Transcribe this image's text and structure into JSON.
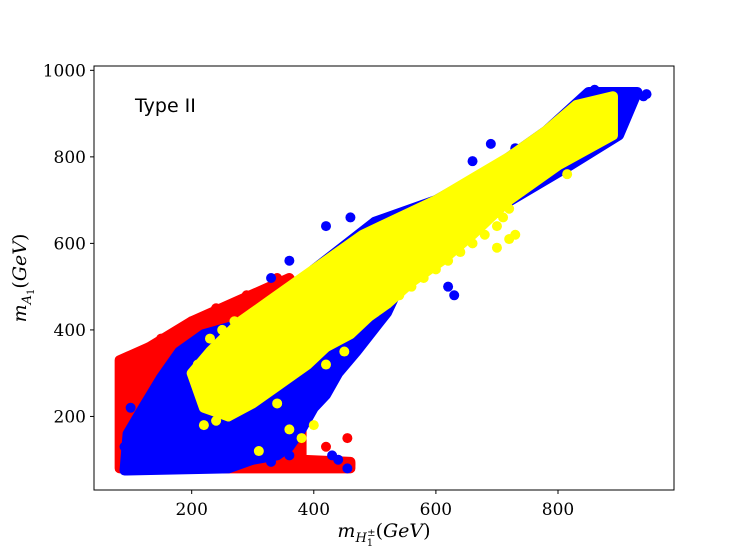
{
  "chart_data": {
    "type": "scatter",
    "annotation": "Type II",
    "xlabel": "m_{H_1^±}(GeV)",
    "ylabel": "m_{A_1}(GeV)",
    "xlim": [
      40,
      990
    ],
    "ylim": [
      30,
      1010
    ],
    "xticks": [
      200,
      400,
      600,
      800
    ],
    "yticks": [
      200,
      400,
      600,
      800,
      1000
    ],
    "grid": false,
    "colors": {
      "red": "#ff0000",
      "blue": "#0000ff",
      "yellow": "#ffff00"
    },
    "series": [
      {
        "color": "#ff0000",
        "regions": [
          [
            [
              82,
              80
            ],
            [
              82,
              330
            ],
            [
              130,
              360
            ],
            [
              200,
              420
            ],
            [
              280,
              470
            ],
            [
              360,
              520
            ],
            [
              380,
              470
            ],
            [
              380,
              100
            ],
            [
              460,
              95
            ],
            [
              460,
              80
            ]
          ]
        ],
        "points": [
          [
            85,
            320
          ],
          [
            100,
            340
          ],
          [
            130,
            360
          ],
          [
            150,
            380
          ],
          [
            200,
            420
          ],
          [
            240,
            450
          ],
          [
            290,
            480
          ],
          [
            340,
            520
          ],
          [
            360,
            500
          ],
          [
            460,
            90
          ],
          [
            455,
            150
          ],
          [
            420,
            130
          ]
        ]
      },
      {
        "color": "#0000ff",
        "regions": [
          [
            [
              90,
              75
            ],
            [
              95,
              160
            ],
            [
              120,
              220
            ],
            [
              150,
              290
            ],
            [
              180,
              350
            ],
            [
              220,
              390
            ],
            [
              320,
              430
            ],
            [
              400,
              540
            ],
            [
              500,
              650
            ],
            [
              600,
              700
            ],
            [
              700,
              780
            ],
            [
              780,
              860
            ],
            [
              850,
              950
            ],
            [
              930,
              950
            ],
            [
              900,
              850
            ],
            [
              820,
              780
            ],
            [
              700,
              680
            ],
            [
              600,
              560
            ],
            [
              540,
              500
            ],
            [
              520,
              440
            ],
            [
              470,
              350
            ],
            [
              440,
              300
            ],
            [
              420,
              250
            ],
            [
              400,
              220
            ],
            [
              380,
              170
            ],
            [
              360,
              130
            ],
            [
              340,
              110
            ],
            [
              300,
              100
            ],
            [
              260,
              80
            ]
          ]
        ],
        "points": [
          [
            945,
            945
          ],
          [
            925,
            950
          ],
          [
            900,
            930
          ],
          [
            860,
            955
          ],
          [
            880,
            900
          ],
          [
            870,
            880
          ],
          [
            940,
            940
          ],
          [
            745,
            800
          ],
          [
            730,
            820
          ],
          [
            690,
            830
          ],
          [
            660,
            790
          ],
          [
            640,
            730
          ],
          [
            630,
            480
          ],
          [
            620,
            500
          ],
          [
            560,
            540
          ],
          [
            490,
            420
          ],
          [
            480,
            400
          ],
          [
            455,
            80
          ],
          [
            440,
            100
          ],
          [
            430,
            110
          ],
          [
            100,
            220
          ],
          [
            90,
            130
          ],
          [
            300,
            100
          ],
          [
            330,
            95
          ],
          [
            360,
            110
          ],
          [
            330,
            520
          ],
          [
            360,
            560
          ],
          [
            420,
            640
          ],
          [
            460,
            660
          ],
          [
            500,
            650
          ]
        ]
      },
      {
        "color": "#ffff00",
        "regions": [
          [
            [
              200,
              300
            ],
            [
              230,
              350
            ],
            [
              280,
              420
            ],
            [
              330,
              470
            ],
            [
              380,
              520
            ],
            [
              430,
              570
            ],
            [
              480,
              620
            ],
            [
              540,
              660
            ],
            [
              600,
              700
            ],
            [
              660,
              750
            ],
            [
              720,
              800
            ],
            [
              780,
              860
            ],
            [
              830,
              920
            ],
            [
              890,
              940
            ],
            [
              890,
              850
            ],
            [
              800,
              780
            ],
            [
              720,
              700
            ],
            [
              660,
              620
            ],
            [
              610,
              560
            ],
            [
              560,
              510
            ],
            [
              520,
              460
            ],
            [
              490,
              430
            ],
            [
              460,
              390
            ],
            [
              420,
              360
            ],
            [
              390,
              320
            ],
            [
              340,
              270
            ],
            [
              300,
              230
            ],
            [
              260,
              200
            ],
            [
              220,
              220
            ]
          ]
        ],
        "points": [
          [
            890,
            935
          ],
          [
            870,
            920
          ],
          [
            840,
            890
          ],
          [
            820,
            870
          ],
          [
            800,
            850
          ],
          [
            790,
            830
          ],
          [
            770,
            780
          ],
          [
            760,
            760
          ],
          [
            740,
            720
          ],
          [
            720,
            680
          ],
          [
            710,
            660
          ],
          [
            700,
            640
          ],
          [
            680,
            620
          ],
          [
            660,
            600
          ],
          [
            640,
            580
          ],
          [
            620,
            560
          ],
          [
            600,
            540
          ],
          [
            580,
            520
          ],
          [
            560,
            500
          ],
          [
            540,
            480
          ],
          [
            520,
            460
          ],
          [
            500,
            440
          ],
          [
            480,
            420
          ],
          [
            460,
            400
          ],
          [
            440,
            380
          ],
          [
            420,
            360
          ],
          [
            400,
            340
          ],
          [
            380,
            320
          ],
          [
            360,
            300
          ],
          [
            340,
            280
          ],
          [
            320,
            260
          ],
          [
            300,
            240
          ],
          [
            280,
            220
          ],
          [
            260,
            200
          ],
          [
            240,
            190
          ],
          [
            220,
            180
          ],
          [
            215,
            300
          ],
          [
            210,
            320
          ],
          [
            230,
            380
          ],
          [
            250,
            400
          ],
          [
            270,
            420
          ],
          [
            300,
            440
          ],
          [
            330,
            460
          ],
          [
            350,
            480
          ],
          [
            380,
            500
          ],
          [
            410,
            520
          ],
          [
            430,
            560
          ],
          [
            460,
            580
          ],
          [
            490,
            600
          ],
          [
            520,
            620
          ],
          [
            550,
            640
          ],
          [
            580,
            660
          ],
          [
            610,
            690
          ],
          [
            640,
            710
          ],
          [
            670,
            730
          ],
          [
            700,
            760
          ],
          [
            730,
            790
          ],
          [
            760,
            820
          ],
          [
            800,
            860
          ],
          [
            815,
            760
          ],
          [
            730,
            620
          ],
          [
            720,
            610
          ],
          [
            700,
            590
          ],
          [
            520,
            500
          ],
          [
            440,
            480
          ],
          [
            310,
            120
          ],
          [
            340,
            230
          ],
          [
            380,
            150
          ],
          [
            400,
            180
          ],
          [
            360,
            170
          ],
          [
            580,
            590
          ],
          [
            610,
            610
          ],
          [
            700,
            670
          ],
          [
            660,
            700
          ],
          [
            590,
            650
          ],
          [
            500,
            520
          ],
          [
            450,
            350
          ],
          [
            420,
            320
          ],
          [
            330,
            340
          ],
          [
            270,
            360
          ],
          [
            240,
            270
          ],
          [
            225,
            260
          ],
          [
            410,
            460
          ]
        ]
      }
    ]
  }
}
